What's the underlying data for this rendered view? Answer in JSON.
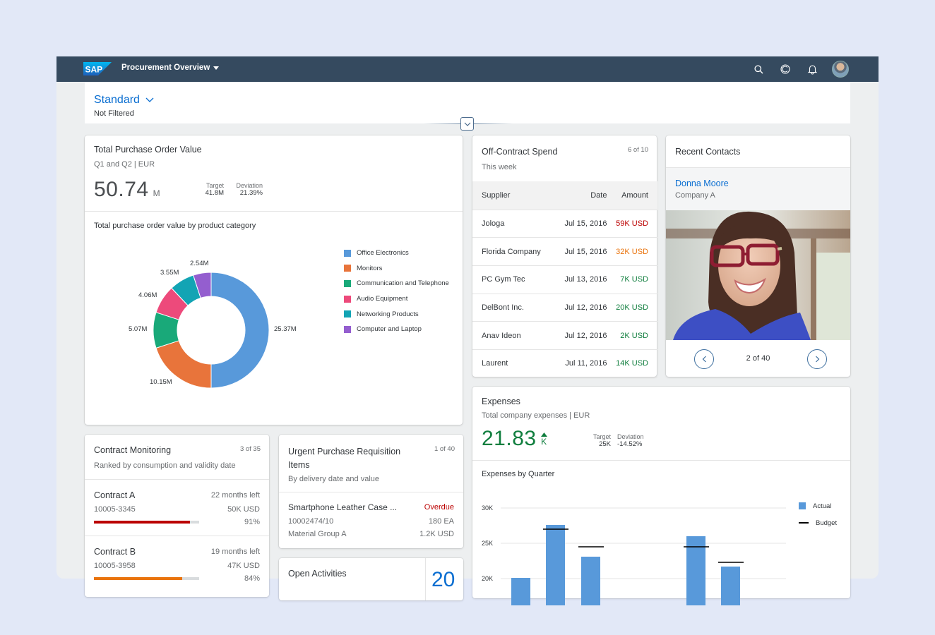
{
  "shell": {
    "logo_text": "SAP",
    "app_title": "Procurement Overview",
    "icons": [
      "search-icon",
      "copilot-icon",
      "notification-bell-icon",
      "user-avatar"
    ]
  },
  "header": {
    "variant": "Standard",
    "filter_status": "Not Filtered"
  },
  "po_card": {
    "title": "Total Purchase Order Value",
    "subtitle": "Q1 and Q2 | EUR",
    "kpi_value": "50.74",
    "kpi_unit": "M",
    "target_label": "Target",
    "target_value": "41.8M",
    "deviation_label": "Deviation",
    "deviation_value": "21.39%",
    "chart_title": "Total purchase order value by product category"
  },
  "spend_card": {
    "title": "Off-Contract Spend",
    "subtitle": "This week",
    "count": "6 of 10",
    "columns": [
      "Supplier",
      "Date",
      "Amount"
    ],
    "rows": [
      {
        "supplier": "Jologa",
        "date": "Jul 15, 2016",
        "amount": "59K USD",
        "status": "error"
      },
      {
        "supplier": "Florida Company",
        "date": "Jul 15, 2016",
        "amount": "32K USD",
        "status": "warning"
      },
      {
        "supplier": "PC Gym Tec",
        "date": "Jul 13, 2016",
        "amount": "7K USD",
        "status": "success"
      },
      {
        "supplier": "DelBont Inc.",
        "date": "Jul 12, 2016",
        "amount": "20K USD",
        "status": "success"
      },
      {
        "supplier": "Anav Ideon",
        "date": "Jul 12, 2016",
        "amount": "2K USD",
        "status": "success"
      },
      {
        "supplier": "Laurent",
        "date": "Jul 11, 2016",
        "amount": "14K USD",
        "status": "success"
      }
    ]
  },
  "contacts_card": {
    "title": "Recent Contacts",
    "name": "Donna Moore",
    "company": "Company A",
    "pager": "2 of 40"
  },
  "expenses_card": {
    "title": "Expenses",
    "subtitle": "Total company expenses | EUR",
    "kpi_value": "21.83",
    "kpi_unit": "K",
    "target_label": "Target",
    "target_value": "25K",
    "deviation_label": "Deviation",
    "deviation_value": "-14.52%",
    "chart_title": "Expenses by Quarter"
  },
  "contracts_card": {
    "title": "Contract Monitoring",
    "subtitle": "Ranked by consumption and validity date",
    "count": "3 of 35",
    "items": [
      {
        "name": "Contract A",
        "id": "10005-3345",
        "time_left": "22 months left",
        "value": "50K USD",
        "percent": "91%",
        "pct": 91,
        "color": "#bb0000"
      },
      {
        "name": "Contract B",
        "id": "10005-3958",
        "time_left": "19 months left",
        "value": "47K USD",
        "percent": "84%",
        "pct": 84,
        "color": "#e9730c"
      }
    ]
  },
  "requisition_card": {
    "title": "Urgent Purchase Requisition Items",
    "subtitle": "By delivery date and value",
    "count": "1 of 40",
    "item": {
      "name": "Smartphone Leather Case ...",
      "status": "Overdue",
      "id": "10002474/10",
      "quantity": "180 EA",
      "group": "Material Group A",
      "value": "1.2K USD"
    }
  },
  "activities_card": {
    "title": "Open Activities",
    "count": "20"
  },
  "colors": {
    "shell": "#354a5f",
    "brand_blue": "#0a6ed1",
    "error": "#bb0000",
    "warning": "#e9730c",
    "success": "#107e3e"
  },
  "chart_data": [
    {
      "type": "pie",
      "title": "Total purchase order value by product category",
      "categories": [
        "Office Electronics",
        "Monitors",
        "Communication and Telephone",
        "Audio Equipment",
        "Networking Products",
        "Computer and Laptop"
      ],
      "values": [
        25.37,
        10.15,
        5.07,
        4.06,
        3.55,
        2.54
      ],
      "labels": [
        "25.37M",
        "10.15M",
        "5.07M",
        "4.06M",
        "3.55M",
        "2.54M"
      ],
      "colors": [
        "#5899da",
        "#e8743b",
        "#19a979",
        "#ed4a7b",
        "#13a4b4",
        "#945ecf"
      ],
      "legend_position": "right",
      "donut": true
    },
    {
      "type": "bar",
      "title": "Expenses by Quarter",
      "xlabel": "",
      "ylabel": "",
      "y_ticks": [
        "30K",
        "25K",
        "20K"
      ],
      "ylim": [
        20000,
        30000
      ],
      "grid": true,
      "legend": [
        "Actual",
        "Budget"
      ],
      "legend_position": "right",
      "series": [
        {
          "name": "Actual",
          "values": [
            20100,
            27600,
            23100,
            26000,
            21700
          ]
        },
        {
          "name": "Budget",
          "values": [
            null,
            27000,
            24500,
            24500,
            22300
          ]
        }
      ]
    }
  ]
}
